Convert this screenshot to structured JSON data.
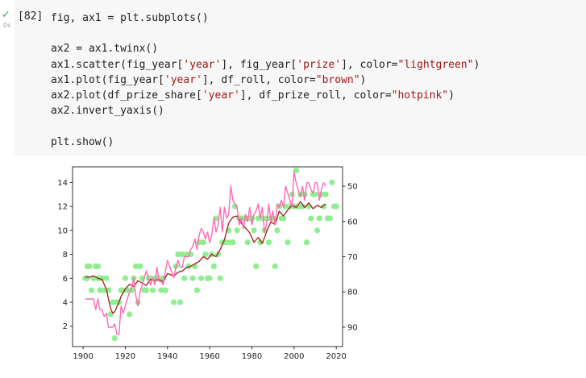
{
  "cell": {
    "execution_count": "[82]",
    "status_icon": "check-icon",
    "elapsed": "0s",
    "code_lines": [
      [
        {
          "t": "fig, ax1 = plt.subplots()"
        }
      ],
      [],
      [
        {
          "t": "ax2 = ax1.twinx()"
        }
      ],
      [
        {
          "t": "ax1.scatter(fig_year["
        },
        {
          "t": "'year'",
          "s": true
        },
        {
          "t": "], fig_year["
        },
        {
          "t": "'prize'",
          "s": true
        },
        {
          "t": "], color="
        },
        {
          "t": "\"lightgreen\"",
          "s": true
        },
        {
          "t": ")"
        }
      ],
      [
        {
          "t": "ax1.plot(fig_year["
        },
        {
          "t": "'year'",
          "s": true
        },
        {
          "t": "], df_roll, color="
        },
        {
          "t": "\"brown\"",
          "s": true
        },
        {
          "t": ")"
        }
      ],
      [
        {
          "t": "ax2.plot(df_prize_share["
        },
        {
          "t": "'year'",
          "s": true
        },
        {
          "t": "], df_prize_roll, color="
        },
        {
          "t": "\"hotpink\"",
          "s": true
        },
        {
          "t": ")"
        }
      ],
      [
        {
          "t": "ax2.invert_yaxis()"
        }
      ],
      [],
      [
        {
          "t": "plt.show()"
        }
      ]
    ],
    "colors": {
      "string": "#a31515",
      "text": "#212121",
      "success": "#34a853"
    }
  },
  "chart_data": {
    "type": "scatter",
    "xlim": [
      1895,
      2023
    ],
    "ylim": [
      0.3,
      15.3
    ],
    "ylim_right": [
      95.5,
      44.5
    ],
    "right_axis_inverted": true,
    "x_ticks": [
      1900,
      1920,
      1940,
      1960,
      1980,
      2000,
      2020
    ],
    "y_ticks": [
      2,
      4,
      6,
      8,
      10,
      12,
      14
    ],
    "y_right_ticks": [
      50,
      60,
      70,
      80,
      90
    ],
    "grid": false,
    "colors": {
      "scatter": "#90ee90",
      "roll": "#a52a2a",
      "share": "#ff69b4"
    },
    "series": [
      {
        "type": "scatter",
        "color": "lightgreen",
        "x": [
          1901,
          1902,
          1902,
          1903,
          1904,
          1905,
          1906,
          1907,
          1907,
          1908,
          1908,
          1909,
          1910,
          1911,
          1912,
          1913,
          1914,
          1915,
          1916,
          1917,
          1918,
          1919,
          1920,
          1921,
          1922,
          1923,
          1924,
          1925,
          1926,
          1927,
          1928,
          1929,
          1930,
          1931,
          1932,
          1933,
          1934,
          1935,
          1936,
          1937,
          1938,
          1939,
          1943,
          1944,
          1945,
          1946,
          1947,
          1948,
          1949,
          1950,
          1951,
          1952,
          1953,
          1954,
          1955,
          1956,
          1957,
          1958,
          1959,
          1960,
          1961,
          1962,
          1963,
          1964,
          1965,
          1966,
          1967,
          1968,
          1969,
          1970,
          1971,
          1972,
          1973,
          1974,
          1975,
          1976,
          1977,
          1978,
          1979,
          1980,
          1981,
          1982,
          1983,
          1984,
          1985,
          1986,
          1987,
          1988,
          1989,
          1990,
          1991,
          1992,
          1993,
          1994,
          1995,
          1996,
          1997,
          1998,
          1999,
          2000,
          2001,
          2002,
          2003,
          2004,
          2005,
          2006,
          2007,
          2008,
          2009,
          2010,
          2011,
          2012,
          2013,
          2014,
          2015,
          2016,
          2017,
          2018,
          2019,
          2020
        ],
        "y": [
          6,
          7,
          6,
          7,
          5,
          6,
          7,
          6,
          7,
          6,
          5,
          6,
          5,
          6,
          5,
          3,
          4,
          1,
          4,
          4,
          5,
          5,
          6,
          5,
          3,
          5,
          6,
          7,
          4,
          7,
          6,
          5,
          5,
          6,
          6,
          5,
          6,
          6,
          6,
          5,
          6,
          5,
          4,
          7,
          8,
          4,
          8,
          6,
          8,
          7,
          8,
          6,
          7,
          5,
          9,
          6,
          9,
          8,
          6,
          6,
          8,
          7,
          11,
          8,
          6,
          9,
          9,
          9,
          10,
          9,
          9,
          12,
          10,
          11,
          11,
          11,
          11,
          9,
          11,
          11,
          10,
          7,
          11,
          9,
          11,
          10,
          11,
          9,
          11,
          11,
          7,
          10,
          12,
          11,
          11,
          12,
          9,
          12,
          13,
          12,
          15,
          12,
          13,
          12,
          13,
          9,
          12,
          11,
          13,
          13,
          10,
          11,
          13,
          12,
          13,
          11,
          11,
          14,
          12,
          12
        ]
      },
      {
        "type": "line",
        "color": "brown",
        "x": [
          1901,
          1903,
          1905,
          1907,
          1909,
          1911,
          1912,
          1913,
          1914,
          1915,
          1916,
          1917,
          1918,
          1920,
          1922,
          1924,
          1926,
          1928,
          1930,
          1932,
          1934,
          1936,
          1938,
          1940,
          1943,
          1945,
          1947,
          1949,
          1951,
          1953,
          1955,
          1957,
          1959,
          1961,
          1963,
          1965,
          1967,
          1969,
          1971,
          1973,
          1975,
          1977,
          1979,
          1981,
          1983,
          1985,
          1987,
          1989,
          1991,
          1993,
          1995,
          1997,
          1999,
          2001,
          2003,
          2005,
          2007,
          2009,
          2011,
          2013,
          2015
        ],
        "y": [
          6.1,
          6.1,
          6.2,
          6.0,
          5.9,
          5.1,
          4.3,
          3.5,
          3.1,
          3.2,
          3.6,
          4.0,
          4.5,
          5.1,
          5.5,
          5.3,
          5.8,
          5.6,
          5.4,
          5.9,
          5.8,
          5.9,
          5.7,
          6.4,
          6.2,
          6.5,
          6.6,
          6.9,
          7.0,
          7.2,
          7.4,
          7.8,
          7.6,
          8.0,
          7.8,
          8.4,
          9.2,
          10.6,
          11.1,
          11.2,
          10.6,
          10.2,
          9.8,
          9.0,
          9.4,
          8.9,
          9.9,
          10.7,
          10.5,
          11.6,
          11.2,
          11.7,
          12.1,
          11.9,
          12.4,
          11.9,
          12.3,
          11.8,
          12.1,
          11.9,
          12.2
        ]
      },
      {
        "type": "line",
        "axis": "right",
        "color": "hotpink",
        "x": [
          1901,
          1903,
          1905,
          1906,
          1907,
          1908,
          1909,
          1910,
          1911,
          1912,
          1913,
          1914,
          1915,
          1916,
          1917,
          1918,
          1919,
          1920,
          1921,
          1922,
          1923,
          1924,
          1925,
          1926,
          1927,
          1928,
          1929,
          1930,
          1931,
          1932,
          1933,
          1934,
          1935,
          1936,
          1937,
          1938,
          1939,
          1940,
          1943,
          1944,
          1945,
          1946,
          1947,
          1948,
          1949,
          1950,
          1951,
          1952,
          1953,
          1954,
          1955,
          1956,
          1957,
          1958,
          1959,
          1960,
          1961,
          1962,
          1963,
          1964,
          1965,
          1966,
          1967,
          1968,
          1969,
          1970,
          1971,
          1972,
          1973,
          1974,
          1975,
          1976,
          1977,
          1978,
          1979,
          1980,
          1981,
          1982,
          1983,
          1984,
          1985,
          1986,
          1987,
          1988,
          1989,
          1990,
          1991,
          1992,
          1993,
          1994,
          1995,
          1996,
          1997,
          1998,
          1999,
          2000,
          2001,
          2002,
          2003,
          2004,
          2005,
          2006,
          2007,
          2008,
          2009,
          2010,
          2011,
          2012,
          2013,
          2014,
          2015
        ],
        "y": [
          82,
          82,
          82,
          85,
          82,
          85,
          85,
          87,
          86,
          90,
          90,
          90,
          89,
          92,
          92,
          84,
          86,
          84,
          82,
          80,
          79,
          76,
          81,
          84,
          80,
          78,
          76,
          74,
          76,
          78,
          76,
          78,
          73,
          77,
          77,
          78,
          74,
          71,
          76,
          73,
          71,
          73,
          73,
          70,
          70,
          70,
          68,
          67,
          65,
          68,
          64,
          62,
          63,
          65,
          63,
          66,
          64,
          59,
          63,
          61,
          56,
          63,
          56,
          59,
          58,
          50,
          54,
          55,
          56,
          61,
          59,
          62,
          58,
          60,
          56,
          61,
          58,
          57,
          55,
          59,
          56,
          63,
          61,
          55,
          60,
          57,
          61,
          55,
          56,
          54,
          56,
          50,
          52,
          54,
          56,
          46,
          49,
          51,
          53,
          50,
          54,
          49,
          49,
          51,
          52,
          49,
          49,
          54,
          51,
          49,
          50
        ]
      }
    ]
  }
}
